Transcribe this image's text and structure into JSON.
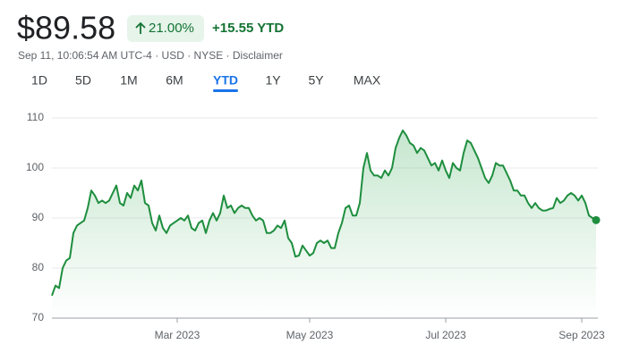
{
  "header": {
    "price": "$89.58",
    "change_percent": "21.00%",
    "change_ytd": "+15.55 YTD",
    "meta": "Sep 11, 10:06:54 AM UTC-4 · USD · NYSE · Disclaimer"
  },
  "ranges": {
    "items": [
      "1D",
      "5D",
      "1M",
      "6M",
      "YTD",
      "1Y",
      "5Y",
      "MAX"
    ],
    "selected": 4
  },
  "chart_data": {
    "type": "line",
    "color": "#1e8e3e",
    "values": [
      74.5,
      76.5,
      76,
      80,
      81.5,
      82,
      87,
      88.5,
      89,
      89.5,
      92,
      95.5,
      94.5,
      93,
      93.5,
      93,
      93.5,
      95,
      96.5,
      93,
      92.5,
      95,
      94,
      96.5,
      95.5,
      97.5,
      93,
      92.5,
      89,
      87.5,
      90.5,
      88,
      87,
      88.5,
      89,
      89.5,
      90,
      89.5,
      90.5,
      88,
      87.5,
      89,
      89.5,
      87,
      89.5,
      91,
      89.5,
      91,
      94.5,
      92,
      92.5,
      91,
      92,
      92.5,
      92,
      92,
      90.5,
      89.5,
      90,
      89.5,
      87,
      87,
      87.5,
      88.5,
      88,
      89.5,
      86,
      85,
      82.3,
      82.5,
      84.5,
      83.5,
      82.5,
      83,
      85,
      85.5,
      85,
      85.5,
      84,
      84,
      87,
      89,
      92,
      92.5,
      90.5,
      90.5,
      93,
      100,
      103,
      99.5,
      98.5,
      98.5,
      98,
      99.5,
      98.5,
      100,
      104,
      106,
      107.5,
      106.5,
      105,
      104.5,
      103,
      104,
      103.5,
      102,
      100.5,
      101,
      99.5,
      101.5,
      99.5,
      98,
      101,
      100,
      99.5,
      103,
      105.5,
      105,
      103.5,
      102,
      100,
      98,
      97,
      98.5,
      101,
      100.5,
      100.5,
      99,
      97.5,
      95.5,
      95.5,
      94.5,
      94.5,
      93,
      92,
      93,
      92,
      91.5,
      91.5,
      91.8,
      92,
      94,
      93,
      93.5,
      94.5,
      95,
      94.5,
      93.5,
      94.5,
      93,
      90.5,
      90,
      89.58
    ],
    "xlim": [
      0,
      152
    ],
    "xticks": [
      {
        "value": 35,
        "label": "Mar 2023"
      },
      {
        "value": 72,
        "label": "May 2023"
      },
      {
        "value": 110,
        "label": "Jul 2023"
      },
      {
        "value": 148,
        "label": "Sep 2023"
      }
    ],
    "ylim": [
      70,
      110
    ],
    "yticks": [
      70,
      80,
      90,
      100,
      110
    ],
    "grid": true
  }
}
